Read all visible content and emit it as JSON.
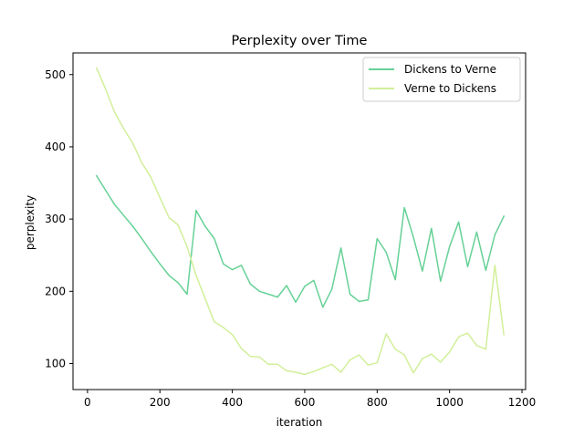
{
  "chart_data": {
    "type": "line",
    "title": "Perplexity over Time",
    "xlabel": "iteration",
    "ylabel": "perplexity",
    "xlim": [
      -40,
      1210
    ],
    "ylim": [
      64,
      530
    ],
    "xticks": [
      0,
      200,
      400,
      600,
      800,
      1000,
      1200
    ],
    "yticks": [
      100,
      200,
      300,
      400,
      500
    ],
    "grid": false,
    "legend_position": "top-right",
    "series": [
      {
        "name": "Dickens to Verne",
        "color": "#66d196",
        "x": [
          25,
          50,
          75,
          100,
          125,
          150,
          175,
          200,
          225,
          250,
          275,
          300,
          325,
          350,
          375,
          400,
          425,
          450,
          475,
          500,
          525,
          550,
          575,
          600,
          625,
          650,
          675,
          700,
          725,
          750,
          775,
          800,
          825,
          850,
          875,
          900,
          925,
          950,
          975,
          1000,
          1025,
          1050,
          1075,
          1100,
          1125,
          1150
        ],
        "values": [
          360,
          340,
          320,
          305,
          290,
          273,
          255,
          238,
          222,
          212,
          196,
          312,
          290,
          273,
          238,
          230,
          236,
          210,
          200,
          196,
          192,
          208,
          185,
          207,
          215,
          178,
          203,
          260,
          196,
          186,
          188,
          273,
          254,
          216,
          316,
          275,
          228,
          287,
          214,
          262,
          296,
          234,
          282,
          229,
          278,
          304
        ]
      },
      {
        "name": "Verne to Dickens",
        "color": "#d2ef9a",
        "x": [
          25,
          50,
          75,
          100,
          125,
          150,
          175,
          200,
          225,
          250,
          275,
          300,
          325,
          350,
          375,
          400,
          425,
          450,
          475,
          500,
          525,
          550,
          575,
          600,
          625,
          650,
          675,
          700,
          725,
          750,
          775,
          800,
          825,
          850,
          875,
          900,
          925,
          950,
          975,
          1000,
          1025,
          1050,
          1075,
          1100,
          1125,
          1150
        ],
        "values": [
          509,
          480,
          448,
          425,
          405,
          378,
          358,
          330,
          302,
          292,
          262,
          222,
          190,
          158,
          150,
          140,
          121,
          110,
          109,
          99,
          99,
          90,
          88,
          85,
          89,
          94,
          99,
          88,
          105,
          112,
          98,
          101,
          141,
          120,
          112,
          87,
          107,
          113,
          102,
          116,
          137,
          142,
          125,
          120,
          236,
          140
        ]
      }
    ]
  }
}
